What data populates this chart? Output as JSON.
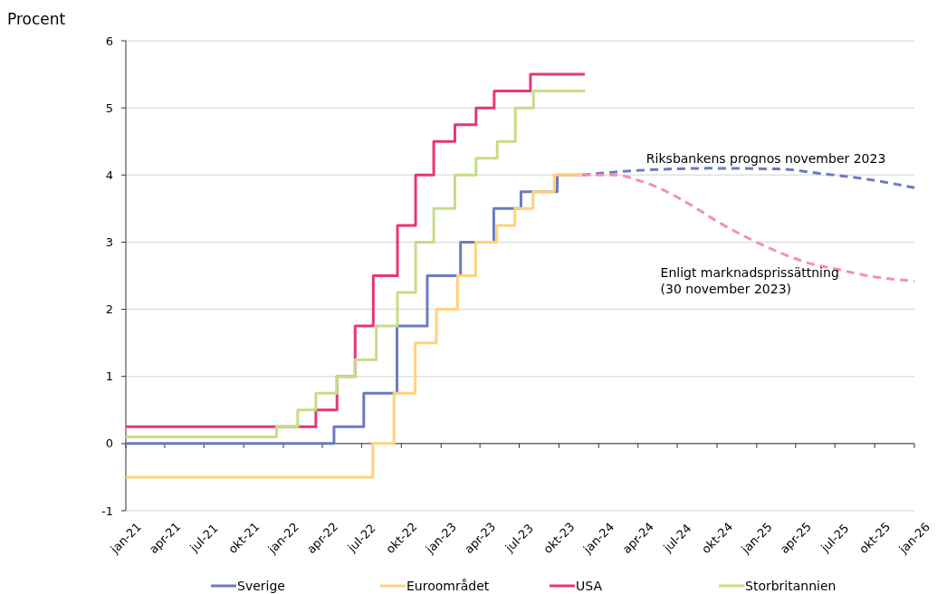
{
  "chart_data": {
    "type": "step",
    "ylabel": "Procent",
    "legend": "bottom",
    "grid": "y",
    "line_style": "solid",
    "marker": "none",
    "xlim": [
      "2021-01",
      "2026-01"
    ],
    "ylim": [
      -1,
      6
    ],
    "yticks": [
      -1,
      0,
      1,
      2,
      3,
      4,
      5,
      6
    ],
    "xticks": [
      {
        "value": "2021-01",
        "label": "jan-21"
      },
      {
        "value": "2021-04",
        "label": "apr-21"
      },
      {
        "value": "2021-07",
        "label": "jul-21"
      },
      {
        "value": "2021-10",
        "label": "okt-21"
      },
      {
        "value": "2022-01",
        "label": "jan-22"
      },
      {
        "value": "2022-04",
        "label": "apr-22"
      },
      {
        "value": "2022-07",
        "label": "jul-22"
      },
      {
        "value": "2022-10",
        "label": "okt-22"
      },
      {
        "value": "2023-01",
        "label": "jan-23"
      },
      {
        "value": "2023-04",
        "label": "apr-23"
      },
      {
        "value": "2023-07",
        "label": "jul-23"
      },
      {
        "value": "2023-10",
        "label": "okt-23"
      },
      {
        "value": "2024-01",
        "label": "jan-24"
      },
      {
        "value": "2024-04",
        "label": "apr-24"
      },
      {
        "value": "2024-07",
        "label": "jul-24"
      },
      {
        "value": "2024-10",
        "label": "okt-24"
      },
      {
        "value": "2025-01",
        "label": "jan-25"
      },
      {
        "value": "2025-04",
        "label": "apr-25"
      },
      {
        "value": "2025-07",
        "label": "jul-25"
      },
      {
        "value": "2025-10",
        "label": "okt-25"
      },
      {
        "value": "2026-01",
        "label": "jan-26"
      }
    ],
    "series": [
      {
        "name": "Sverige",
        "color": "#6b7bbf",
        "x": [
          "2021-01-01",
          "2022-04-28",
          "2022-07-06",
          "2022-09-21",
          "2022-11-30",
          "2023-02-15",
          "2023-05-03",
          "2023-07-05",
          "2023-09-27",
          "2023-11-30"
        ],
        "values": [
          0,
          0.25,
          0.75,
          1.75,
          2.5,
          3.0,
          3.5,
          3.75,
          4.0,
          4.0
        ]
      },
      {
        "name": "Euroområdet",
        "color": "#ffd27a",
        "x": [
          "2021-01-01",
          "2022-07-27",
          "2022-09-14",
          "2022-11-02",
          "2022-12-21",
          "2023-02-08",
          "2023-03-22",
          "2023-05-10",
          "2023-06-21",
          "2023-08-02",
          "2023-09-20",
          "2023-11-30"
        ],
        "values": [
          -0.5,
          0,
          0.75,
          1.5,
          2.0,
          2.5,
          3.0,
          3.25,
          3.5,
          3.75,
          4.0,
          4.0
        ]
      },
      {
        "name": "USA",
        "color": "#e8357a",
        "x": [
          "2021-01-01",
          "2022-03-17",
          "2022-05-05",
          "2022-06-16",
          "2022-07-28",
          "2022-09-22",
          "2022-11-03",
          "2022-12-15",
          "2023-02-02",
          "2023-03-23",
          "2023-05-04",
          "2023-07-27",
          "2023-11-30"
        ],
        "values": [
          0.25,
          0.5,
          1.0,
          1.75,
          2.5,
          3.25,
          4.0,
          4.5,
          4.75,
          5.0,
          5.25,
          5.5,
          5.5
        ]
      },
      {
        "name": "Storbritannien",
        "color": "#c5dd85",
        "x": [
          "2021-01-01",
          "2021-12-16",
          "2022-02-03",
          "2022-03-17",
          "2022-05-05",
          "2022-06-16",
          "2022-08-04",
          "2022-09-22",
          "2022-11-03",
          "2022-12-15",
          "2023-02-02",
          "2023-03-23",
          "2023-05-11",
          "2023-06-22",
          "2023-08-03",
          "2023-11-30"
        ],
        "values": [
          0.1,
          0.25,
          0.5,
          0.75,
          1.0,
          1.25,
          1.75,
          2.25,
          3.0,
          3.5,
          4.0,
          4.25,
          4.5,
          5.0,
          5.25,
          5.25
        ]
      },
      {
        "type": "line",
        "line_style": "dashed",
        "color": "#6b7bbf",
        "x": [
          "2023-11-24",
          "2024-02-18",
          "2024-05-09",
          "2024-09-09",
          "2025-02-18",
          "2025-06-01",
          "2025-10-01",
          "2026-01-01"
        ],
        "values": [
          4.0,
          4.05,
          4.08,
          4.1,
          4.09,
          4.02,
          3.92,
          3.81
        ]
      },
      {
        "type": "line",
        "line_style": "dashed",
        "color": "#f38fbc",
        "x": [
          "2023-11-24",
          "2024-02-12",
          "2024-03-28",
          "2024-05-22",
          "2024-07-28",
          "2024-10-04",
          "2024-12-12",
          "2025-02-18",
          "2025-04-25",
          "2025-07-10",
          "2025-09-24",
          "2026-01-01"
        ],
        "values": [
          4.0,
          4.0,
          3.93,
          3.8,
          3.57,
          3.3,
          3.06,
          2.86,
          2.7,
          2.59,
          2.49,
          2.42
        ]
      }
    ],
    "annotations": [
      "Riksbankens prognos november 2023",
      "Enligt marknadsprissättning\n(30 november 2023)"
    ]
  }
}
